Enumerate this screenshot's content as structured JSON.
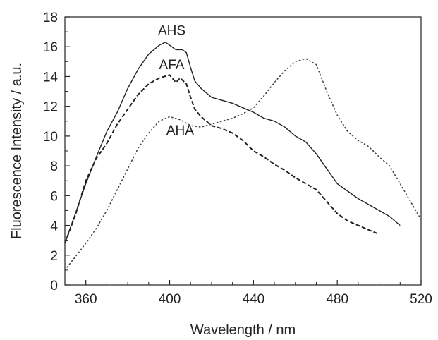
{
  "chart_data": {
    "type": "line",
    "title": "",
    "xlabel": "Wavelength / nm",
    "ylabel": "Fluorescence Intensity / a.u.",
    "xlim": [
      350,
      520
    ],
    "ylim": [
      0,
      18
    ],
    "xticks": [
      360,
      400,
      440,
      480,
      520
    ],
    "yticks": [
      0,
      2,
      4,
      6,
      8,
      10,
      12,
      14,
      16,
      18
    ],
    "grid": false,
    "legend": "none",
    "series": [
      {
        "name": "AHS",
        "style": "solid",
        "color": "#222222",
        "x": [
          350,
          355,
          360,
          365,
          370,
          375,
          380,
          385,
          390,
          395,
          398,
          400,
          403,
          406,
          408,
          410,
          412,
          415,
          420,
          425,
          430,
          435,
          440,
          445,
          450,
          455,
          460,
          465,
          470,
          475,
          480,
          485,
          490,
          495,
          500,
          505,
          510
        ],
        "y": [
          2.8,
          4.8,
          6.8,
          8.6,
          10.3,
          11.6,
          13.2,
          14.5,
          15.5,
          16.1,
          16.3,
          16.1,
          15.8,
          15.8,
          15.6,
          14.6,
          13.7,
          13.2,
          12.6,
          12.4,
          12.2,
          11.9,
          11.6,
          11.2,
          11.0,
          10.6,
          10.0,
          9.6,
          8.8,
          7.8,
          6.8,
          6.3,
          5.8,
          5.4,
          5.0,
          4.6,
          4.0
        ]
      },
      {
        "name": "AFA",
        "style": "dashed",
        "color": "#222222",
        "x": [
          350,
          355,
          360,
          365,
          370,
          375,
          380,
          385,
          390,
          395,
          400,
          403,
          405,
          408,
          410,
          412,
          415,
          420,
          425,
          430,
          435,
          440,
          445,
          450,
          455,
          460,
          465,
          470,
          475,
          480,
          485,
          490,
          495,
          500
        ],
        "y": [
          2.8,
          4.7,
          7.0,
          8.5,
          9.5,
          10.8,
          11.8,
          12.8,
          13.5,
          13.9,
          14.1,
          13.6,
          13.9,
          13.5,
          12.6,
          11.8,
          11.3,
          10.7,
          10.5,
          10.2,
          9.7,
          9.0,
          8.6,
          8.1,
          7.7,
          7.2,
          6.8,
          6.4,
          5.6,
          4.8,
          4.3,
          4.0,
          3.7,
          3.4
        ]
      },
      {
        "name": "AHA",
        "style": "dotted",
        "color": "#444444",
        "x": [
          350,
          355,
          360,
          365,
          370,
          375,
          380,
          385,
          390,
          395,
          400,
          405,
          410,
          415,
          420,
          425,
          430,
          435,
          440,
          445,
          450,
          455,
          460,
          465,
          470,
          475,
          480,
          485,
          490,
          495,
          500,
          505,
          510,
          515,
          520
        ],
        "y": [
          1.0,
          1.9,
          2.8,
          3.8,
          5.0,
          6.4,
          7.8,
          9.2,
          10.2,
          11.0,
          11.3,
          11.1,
          10.7,
          10.6,
          10.8,
          11.0,
          11.2,
          11.5,
          11.9,
          12.7,
          13.6,
          14.4,
          15.0,
          15.2,
          14.8,
          13.0,
          11.4,
          10.3,
          9.7,
          9.3,
          8.6,
          8.0,
          6.8,
          5.6,
          4.4
        ]
      }
    ],
    "annotations": [
      {
        "text": "AHS",
        "x": 401,
        "y": 16.8
      },
      {
        "text": "AFA",
        "x": 401,
        "y": 14.5
      },
      {
        "text": "AHA",
        "x": 405,
        "y": 10.1
      }
    ]
  }
}
